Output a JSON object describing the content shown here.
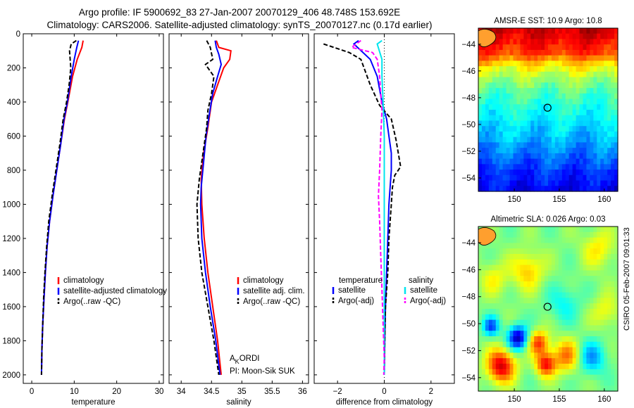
{
  "header": {
    "line1": "Argo profile: IF 5900692_83 27-Jan-2007 20070129_406 48.748S 153.692E",
    "line2": "Climatology: CARS2006. Satellite-adjusted climatology: synTS_20070127.nc (0.17d earlier)"
  },
  "side_label": "CSIRO 05-Feb-2007 09:01:33",
  "colors": {
    "climatology": "#ff0000",
    "satellite": "#0000ff",
    "argo": "#000000",
    "sat_sal": "#00e5ee",
    "argo_sal": "#ff00ff"
  },
  "chart_data": [
    {
      "type": "line",
      "name": "temperature-profile",
      "xlabel": "temperature",
      "xlim": [
        -2,
        31
      ],
      "ylim": [
        2050,
        0
      ],
      "y_ticks": [
        0,
        200,
        400,
        600,
        800,
        1000,
        1200,
        1400,
        1600,
        1800,
        2000
      ],
      "x_ticks": [
        0,
        10,
        20,
        30
      ],
      "series": [
        {
          "name": "climatology",
          "color": "#ff0000",
          "points": [
            [
              12.1,
              40
            ],
            [
              11.8,
              80
            ],
            [
              10.7,
              150
            ],
            [
              9.6,
              250
            ],
            [
              8.5,
              400
            ],
            [
              7.7,
              500
            ],
            [
              6.8,
              650
            ],
            [
              5.9,
              800
            ],
            [
              5.0,
              950
            ],
            [
              4.2,
              1100
            ],
            [
              3.6,
              1250
            ],
            [
              3.2,
              1400
            ],
            [
              2.9,
              1550
            ],
            [
              2.6,
              1700
            ],
            [
              2.4,
              1850
            ],
            [
              2.3,
              2000
            ]
          ]
        },
        {
          "name": "satellite-adjusted climatology",
          "color": "#0000ff",
          "points": [
            [
              11.0,
              40
            ],
            [
              10.6,
              80
            ],
            [
              10.0,
              150
            ],
            [
              9.3,
              250
            ],
            [
              8.4,
              400
            ],
            [
              7.6,
              500
            ],
            [
              6.8,
              650
            ],
            [
              5.9,
              800
            ],
            [
              5.0,
              950
            ],
            [
              4.2,
              1100
            ],
            [
              3.6,
              1250
            ],
            [
              3.2,
              1400
            ],
            [
              2.9,
              1550
            ],
            [
              2.6,
              1700
            ],
            [
              2.4,
              1850
            ],
            [
              2.3,
              2000
            ]
          ]
        },
        {
          "name": "Argo(..raw -QC)",
          "color": "#000000",
          "dash": true,
          "points": [
            [
              10.5,
              40
            ],
            [
              9.3,
              60
            ],
            [
              8.9,
              100
            ],
            [
              9.2,
              200
            ],
            [
              8.8,
              300
            ],
            [
              8.2,
              400
            ],
            [
              7.4,
              500
            ],
            [
              6.6,
              650
            ],
            [
              5.7,
              800
            ],
            [
              4.8,
              950
            ],
            [
              4.0,
              1100
            ],
            [
              3.5,
              1250
            ],
            [
              3.1,
              1400
            ],
            [
              2.8,
              1550
            ],
            [
              2.6,
              1700
            ],
            [
              2.4,
              1850
            ],
            [
              2.3,
              2000
            ]
          ]
        }
      ],
      "legend": [
        "climatology",
        "satellite-adjusted climatology",
        "Argo(..raw -QC)"
      ]
    },
    {
      "type": "line",
      "name": "salinity-profile",
      "xlabel": "salinity",
      "xlim": [
        33.8,
        36.1
      ],
      "ylim": [
        2050,
        0
      ],
      "x_ticks": [
        34,
        34.5,
        35,
        35.5,
        36
      ],
      "series": [
        {
          "name": "climatology",
          "color": "#ff0000",
          "points": [
            [
              34.58,
              40
            ],
            [
              34.62,
              80
            ],
            [
              34.82,
              100
            ],
            [
              34.8,
              150
            ],
            [
              34.7,
              200
            ],
            [
              34.6,
              300
            ],
            [
              34.5,
              400
            ],
            [
              34.44,
              550
            ],
            [
              34.37,
              700
            ],
            [
              34.33,
              850
            ],
            [
              34.34,
              1000
            ],
            [
              34.38,
              1200
            ],
            [
              34.44,
              1400
            ],
            [
              34.52,
              1600
            ],
            [
              34.6,
              1800
            ],
            [
              34.66,
              2000
            ]
          ]
        },
        {
          "name": "satellite adj. clim.",
          "color": "#0000ff",
          "points": [
            [
              34.56,
              40
            ],
            [
              34.58,
              80
            ],
            [
              34.62,
              120
            ],
            [
              34.66,
              180
            ],
            [
              34.6,
              250
            ],
            [
              34.52,
              350
            ],
            [
              34.46,
              480
            ],
            [
              34.41,
              600
            ],
            [
              34.37,
              750
            ],
            [
              34.33,
              900
            ],
            [
              34.32,
              1000
            ],
            [
              34.34,
              1200
            ],
            [
              34.4,
              1400
            ],
            [
              34.48,
              1600
            ],
            [
              34.57,
              1800
            ],
            [
              34.64,
              2000
            ]
          ]
        },
        {
          "name": "Argo(..raw -QC)",
          "color": "#000000",
          "dash": true,
          "points": [
            [
              34.42,
              40
            ],
            [
              34.48,
              80
            ],
            [
              34.52,
              150
            ],
            [
              34.4,
              180
            ],
            [
              34.54,
              250
            ],
            [
              34.5,
              350
            ],
            [
              34.44,
              450
            ],
            [
              34.42,
              550
            ],
            [
              34.36,
              700
            ],
            [
              34.3,
              850
            ],
            [
              34.26,
              1000
            ],
            [
              34.28,
              1200
            ],
            [
              34.34,
              1400
            ],
            [
              34.44,
              1600
            ],
            [
              34.54,
              1800
            ],
            [
              34.62,
              2000
            ]
          ]
        }
      ],
      "legend": [
        "climatology",
        "satellite adj. clim.",
        "Argo(..raw -QC)"
      ],
      "annotation": {
        "line1_main_a": "A",
        "line1_sub": "K",
        "line1_main_b": "ORDI",
        "line2": "PI: Moon-Sik SUK"
      }
    },
    {
      "type": "line",
      "name": "difference-profile",
      "xlabel": "difference from climatology",
      "xlim": [
        -3,
        3
      ],
      "ylim": [
        2050,
        0
      ],
      "x_ticks": [
        -2,
        0,
        2
      ],
      "zero_line": 0,
      "series": [
        {
          "name": "temperature satellite",
          "color": "#0000ff",
          "points": [
            [
              -1.1,
              40
            ],
            [
              -1.3,
              60
            ],
            [
              -0.6,
              150
            ],
            [
              -0.3,
              250
            ],
            [
              -0.1,
              400
            ],
            [
              0.1,
              500
            ],
            [
              0.2,
              600
            ],
            [
              0.3,
              700
            ],
            [
              0.3,
              800
            ],
            [
              0.25,
              900
            ],
            [
              0.2,
              1000
            ],
            [
              0.15,
              1200
            ],
            [
              0.1,
              1400
            ],
            [
              0.05,
              1600
            ],
            [
              0.02,
              1800
            ],
            [
              0.0,
              2000
            ]
          ]
        },
        {
          "name": "temperature Argo(-adj)",
          "color": "#000000",
          "dash": true,
          "points": [
            [
              -2.6,
              60
            ],
            [
              -1.5,
              110
            ],
            [
              -1.0,
              150
            ],
            [
              -0.6,
              300
            ],
            [
              -0.2,
              420
            ],
            [
              0.3,
              500
            ],
            [
              0.5,
              620
            ],
            [
              0.6,
              700
            ],
            [
              0.7,
              780
            ],
            [
              0.45,
              830
            ],
            [
              0.35,
              900
            ],
            [
              0.3,
              1000
            ],
            [
              0.2,
              1200
            ],
            [
              0.15,
              1400
            ],
            [
              0.05,
              1600
            ],
            [
              0.02,
              1800
            ],
            [
              0.0,
              2000
            ]
          ]
        },
        {
          "name": "salinity satellite",
          "color": "#00e5ee",
          "points": [
            [
              -0.1,
              40
            ],
            [
              -0.3,
              60
            ],
            [
              -0.1,
              150
            ],
            [
              -0.1,
              250
            ],
            [
              -0.05,
              400
            ],
            [
              0.0,
              600
            ],
            [
              0.0,
              800
            ],
            [
              0.0,
              1000
            ],
            [
              0.0,
              1200
            ],
            [
              0.0,
              1400
            ],
            [
              0.0,
              1600
            ],
            [
              0.0,
              1800
            ],
            [
              0.0,
              2000
            ]
          ]
        },
        {
          "name": "salinity Argo(-adj)",
          "color": "#ff00ff",
          "dash": true,
          "points": [
            [
              -1.0,
              40
            ],
            [
              -1.4,
              80
            ],
            [
              -0.5,
              110
            ],
            [
              -0.3,
              150
            ],
            [
              -0.2,
              250
            ],
            [
              -0.15,
              350
            ],
            [
              -0.1,
              450
            ],
            [
              -0.15,
              600
            ],
            [
              -0.2,
              800
            ],
            [
              -0.25,
              950
            ],
            [
              -0.2,
              1100
            ],
            [
              -0.15,
              1300
            ],
            [
              -0.1,
              1500
            ],
            [
              -0.05,
              1700
            ],
            [
              0.0,
              1900
            ],
            [
              -0.02,
              2000
            ]
          ]
        }
      ],
      "legend_headers": [
        "temperature",
        "salinity"
      ],
      "legend_left": [
        "satellite",
        "Argo(-adj)"
      ],
      "legend_right": [
        "satellite",
        "Argo(-adj)"
      ]
    },
    {
      "type": "heatmap",
      "name": "amsr-e-sst-map",
      "title": "AMSR-E SST: 10.9 Argo: 10.8",
      "xlim": [
        146,
        161.5
      ],
      "ylim": [
        -55,
        -42.8
      ],
      "x_ticks": [
        150,
        155,
        160
      ],
      "y_ticks": [
        -44,
        -46,
        -48,
        -50,
        -52,
        -54
      ],
      "argo_position": [
        153.692,
        -48.748
      ],
      "colormap": "jet",
      "bands": [
        {
          "lat": -43,
          "value": 0.92
        },
        {
          "lat": -44.5,
          "value": 0.82
        },
        {
          "lat": -45.5,
          "value": 0.62
        },
        {
          "lat": -46.5,
          "value": 0.52
        },
        {
          "lat": -47.5,
          "value": 0.45
        },
        {
          "lat": -49,
          "value": 0.38
        },
        {
          "lat": -50.5,
          "value": 0.32
        },
        {
          "lat": -52,
          "value": 0.24
        },
        {
          "lat": -53.5,
          "value": 0.16
        },
        {
          "lat": -55,
          "value": 0.1
        }
      ]
    },
    {
      "type": "heatmap",
      "name": "altimetric-sla-map",
      "title": "Altimetric SLA: 0.026 Argo: 0.03",
      "xlim": [
        146,
        161.5
      ],
      "ylim": [
        -55,
        -42.8
      ],
      "x_ticks": [
        150,
        155,
        160
      ],
      "y_ticks": [
        -44,
        -46,
        -48,
        -50,
        -52,
        -54
      ],
      "argo_position": [
        153.692,
        -48.748
      ],
      "colormap": "jet",
      "background_value": 0.5
    }
  ]
}
